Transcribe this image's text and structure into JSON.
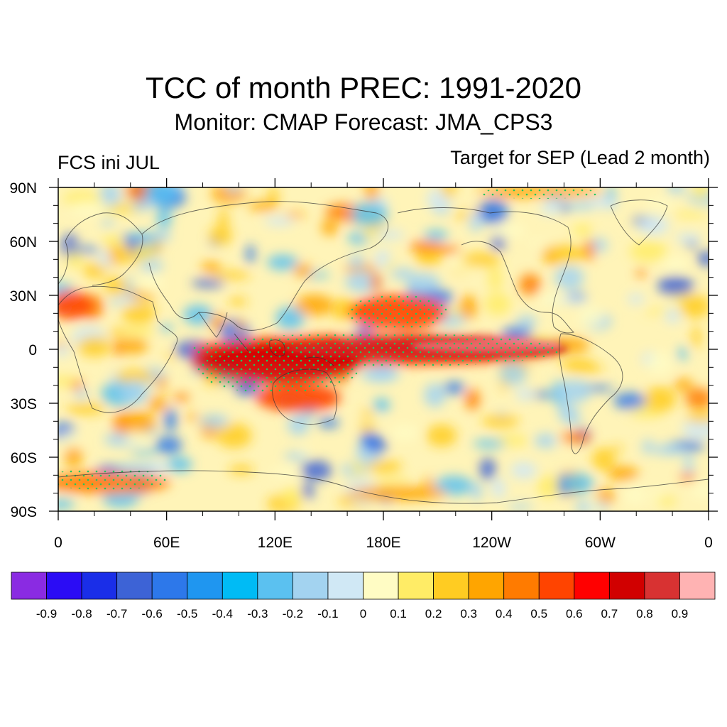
{
  "title": "TCC of month PREC: 1991-2020",
  "subtitle": "Monitor: CMAP   Forecast: JMA_CPS3",
  "left_label": "FCS ini JUL",
  "right_label": "Target for SEP (Lead 2 month)",
  "lat_ticks": [
    {
      "value": 90,
      "label": "90N"
    },
    {
      "value": 60,
      "label": "60N"
    },
    {
      "value": 30,
      "label": "30N"
    },
    {
      "value": 0,
      "label": "0"
    },
    {
      "value": -30,
      "label": "30S"
    },
    {
      "value": -60,
      "label": "60S"
    },
    {
      "value": -90,
      "label": "90S"
    }
  ],
  "lon_ticks": [
    {
      "value": 0,
      "label": "0"
    },
    {
      "value": 60,
      "label": "60E"
    },
    {
      "value": 120,
      "label": "120E"
    },
    {
      "value": 180,
      "label": "180E"
    },
    {
      "value": 240,
      "label": "120W"
    },
    {
      "value": 300,
      "label": "60W"
    },
    {
      "value": 360,
      "label": "0"
    }
  ],
  "colorbar": {
    "colors": [
      "#8a2be2",
      "#2b0cf5",
      "#1a2ee8",
      "#3d63d6",
      "#2d78ea",
      "#1f96f0",
      "#00bbf5",
      "#5bc1f0",
      "#a3d3f0",
      "#d0e8f5",
      "#fffcc4",
      "#ffec66",
      "#ffcc22",
      "#ffa500",
      "#ff7b00",
      "#ff4400",
      "#ff0000",
      "#d10000",
      "#d83232",
      "#ffb3b3"
    ],
    "labels": [
      "-0.9",
      "-0.8",
      "-0.7",
      "-0.6",
      "-0.5",
      "-0.4",
      "-0.3",
      "-0.2",
      "-0.1",
      "0",
      "0.1",
      "0.2",
      "0.3",
      "0.4",
      "0.5",
      "0.6",
      "0.7",
      "0.8",
      "0.9"
    ]
  },
  "map_features": [
    {
      "name": "equatorial-pacific-high-correlation",
      "lon": [
        160,
        280
      ],
      "lat": [
        -10,
        10
      ],
      "tcc": [
        0.7,
        0.9
      ]
    },
    {
      "name": "maritime-continent-high-correlation",
      "lon": [
        75,
        160
      ],
      "lat": [
        -30,
        5
      ],
      "tcc": [
        0.6,
        0.8
      ]
    },
    {
      "name": "stippling",
      "meaning": "significant correlation",
      "color": "#22c55e"
    }
  ]
}
